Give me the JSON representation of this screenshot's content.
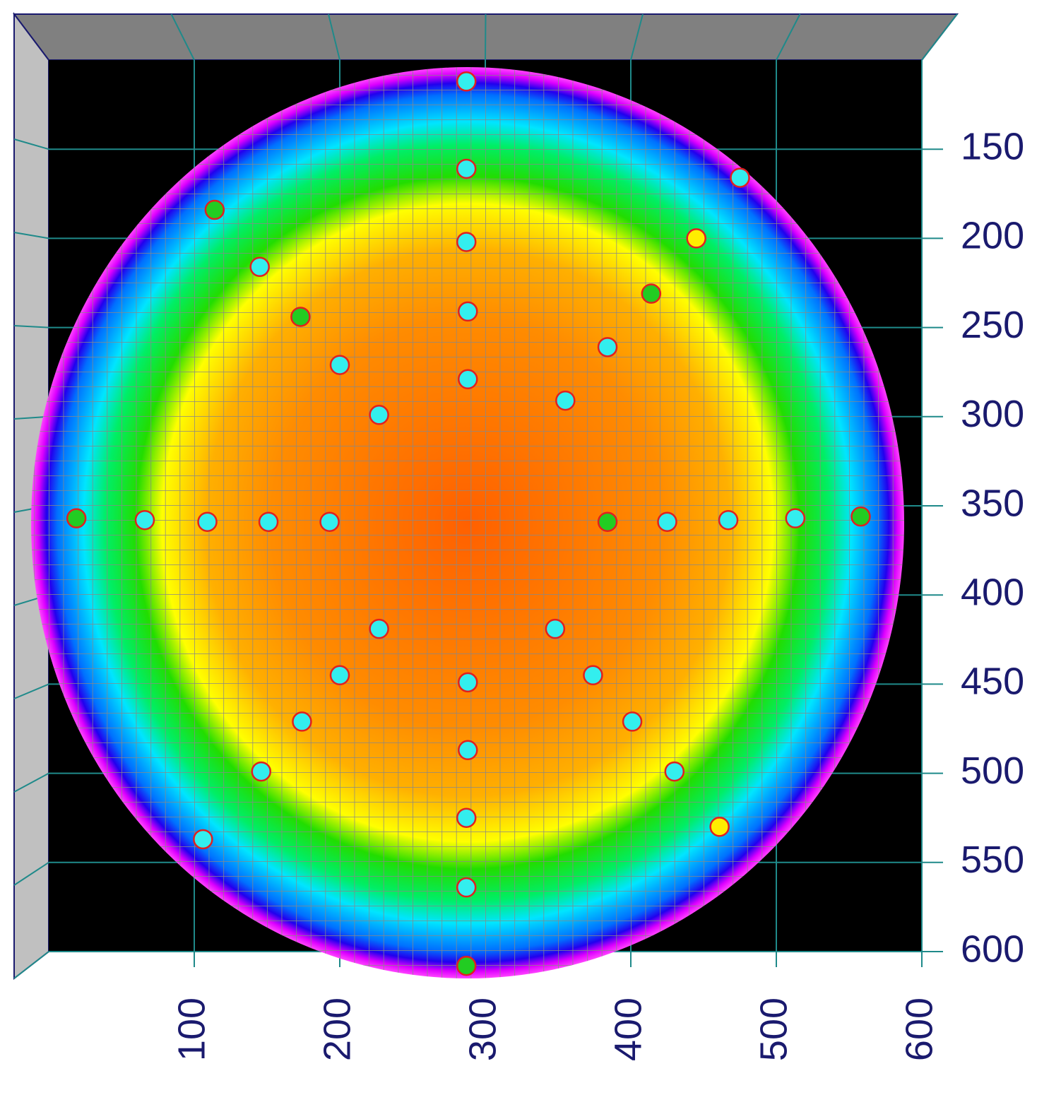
{
  "chart_data": {
    "type": "scatter",
    "xlim": [
      0,
      600
    ],
    "ylim": [
      100,
      600
    ],
    "y_inverted": true,
    "xticks": [
      100,
      200,
      300,
      400,
      500,
      600
    ],
    "yticks": [
      150,
      200,
      250,
      300,
      350,
      400,
      450,
      500,
      550,
      600
    ],
    "grid": true,
    "x": [
      287,
      287,
      287,
      288,
      288,
      475,
      114,
      445,
      145,
      414,
      173,
      384,
      200,
      355,
      227,
      19,
      66,
      109,
      151,
      193,
      384,
      425,
      467,
      513,
      558,
      227,
      348,
      200,
      374,
      288,
      174,
      401,
      288,
      146,
      430,
      287,
      461,
      106,
      287,
      287
    ],
    "y": [
      112,
      161,
      202,
      241,
      279,
      166,
      184,
      200,
      216,
      231,
      244,
      261,
      271,
      291,
      299,
      357,
      358,
      359,
      359,
      359,
      359,
      359,
      358,
      357,
      356,
      419,
      419,
      445,
      445,
      449,
      471,
      471,
      487,
      499,
      499,
      525,
      530,
      537,
      564,
      608
    ],
    "colors": [
      "#33eeee",
      "#33eeee",
      "#33eeee",
      "#33eeee",
      "#33eeee",
      "#33eeee",
      "#22cc22",
      "#ffee00",
      "#33eeee",
      "#22cc22",
      "#22cc22",
      "#33eeee",
      "#33eeee",
      "#33eeee",
      "#33eeee",
      "#22cc22",
      "#33eeee",
      "#33eeee",
      "#33eeee",
      "#33eeee",
      "#22cc22",
      "#33eeee",
      "#33eeee",
      "#33eeee",
      "#22cc22",
      "#33eeee",
      "#33eeee",
      "#33eeee",
      "#33eeee",
      "#33eeee",
      "#33eeee",
      "#33eeee",
      "#33eeee",
      "#33eeee",
      "#33eeee",
      "#33eeee",
      "#ffee00",
      "#33eeee",
      "#33eeee",
      "#22cc22"
    ]
  }
}
